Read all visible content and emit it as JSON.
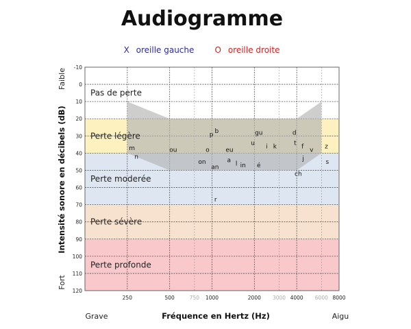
{
  "chart_data": {
    "type": "audiogram",
    "title": "Audiogramme",
    "legend": [
      {
        "symbol": "X",
        "label": "oreille gauche",
        "color": "#2a2aa8"
      },
      {
        "symbol": "O",
        "label": "oreille droite",
        "color": "#d42020"
      }
    ],
    "xlabel": "Fréquence en Hertz (Hz)",
    "x_left_label": "Grave",
    "x_right_label": "Aigu",
    "ylabel": "Intensité sonore en décibels (dB)",
    "y_top_label": "Faible",
    "y_bottom_label": "Fort",
    "x_scale": "log",
    "xlim": [
      125,
      8000
    ],
    "ylim": [
      -10,
      120
    ],
    "y_inverted": true,
    "x_ticks": [
      {
        "value": 250,
        "label": "250",
        "major": true
      },
      {
        "value": 500,
        "label": "500",
        "major": true
      },
      {
        "value": 750,
        "label": "750",
        "major": false
      },
      {
        "value": 1000,
        "label": "1000",
        "major": true
      },
      {
        "value": 2000,
        "label": "2000",
        "major": true
      },
      {
        "value": 3000,
        "label": "3000",
        "major": false
      },
      {
        "value": 4000,
        "label": "4000",
        "major": true
      },
      {
        "value": 6000,
        "label": "6000",
        "major": false
      },
      {
        "value": 8000,
        "label": "8000",
        "major": true
      }
    ],
    "y_ticks": [
      {
        "value": -10,
        "label": "-10"
      },
      {
        "value": 0,
        "label": "0"
      },
      {
        "value": 10,
        "label": "10"
      },
      {
        "value": 20,
        "label": "20"
      },
      {
        "value": 30,
        "label": "30"
      },
      {
        "value": 40,
        "label": "40"
      },
      {
        "value": 50,
        "label": "50"
      },
      {
        "value": 60,
        "label": "60"
      },
      {
        "value": 70,
        "label": "70"
      },
      {
        "value": 80,
        "label": "80"
      },
      {
        "value": 90,
        "label": "90"
      },
      {
        "value": 100,
        "label": "100"
      },
      {
        "value": 110,
        "label": "110"
      },
      {
        "value": 120,
        "label": "120"
      }
    ],
    "bands": [
      {
        "label": "Pas de perte",
        "from": -10,
        "to": 20,
        "color": "#ffffff"
      },
      {
        "label": "Perte légère",
        "from": 20,
        "to": 40,
        "color": "#fdf1bf"
      },
      {
        "label": "Perte moderée",
        "from": 40,
        "to": 70,
        "color": "#dde6f1"
      },
      {
        "label": "Perte sévère",
        "from": 70,
        "to": 90,
        "color": "#f7e2d0"
      },
      {
        "label": "Perte profonde",
        "from": 90,
        "to": 120,
        "color": "#f8c8cb"
      }
    ],
    "speech_banana": {
      "color": "#b3b3b3",
      "opacity": 0.65,
      "polygon": [
        [
          250,
          10
        ],
        [
          500,
          20
        ],
        [
          4000,
          20
        ],
        [
          6000,
          10
        ],
        [
          6000,
          40
        ],
        [
          4000,
          50
        ],
        [
          500,
          50
        ],
        [
          250,
          40
        ]
      ]
    },
    "phonemes": [
      {
        "label": "m",
        "x": 270,
        "y": 37
      },
      {
        "label": "n",
        "x": 290,
        "y": 42
      },
      {
        "label": "ou",
        "x": 530,
        "y": 38
      },
      {
        "label": "o",
        "x": 930,
        "y": 38
      },
      {
        "label": "on",
        "x": 850,
        "y": 45
      },
      {
        "label": "an",
        "x": 1050,
        "y": 48
      },
      {
        "label": "p",
        "x": 990,
        "y": 29
      },
      {
        "label": "b",
        "x": 1080,
        "y": 27
      },
      {
        "label": "eu",
        "x": 1330,
        "y": 38
      },
      {
        "label": "a",
        "x": 1320,
        "y": 44
      },
      {
        "label": "l",
        "x": 1490,
        "y": 46
      },
      {
        "label": "in",
        "x": 1660,
        "y": 47
      },
      {
        "label": "r",
        "x": 1060,
        "y": 67
      },
      {
        "label": "gu",
        "x": 2150,
        "y": 28
      },
      {
        "label": "u",
        "x": 1950,
        "y": 34
      },
      {
        "label": "i",
        "x": 2450,
        "y": 36
      },
      {
        "label": "k",
        "x": 2800,
        "y": 36
      },
      {
        "label": "é",
        "x": 2150,
        "y": 47
      },
      {
        "label": "d",
        "x": 3850,
        "y": 28
      },
      {
        "label": "t",
        "x": 3900,
        "y": 34
      },
      {
        "label": "f",
        "x": 4400,
        "y": 36
      },
      {
        "label": "v",
        "x": 5100,
        "y": 38
      },
      {
        "label": "j",
        "x": 4450,
        "y": 43
      },
      {
        "label": "ch",
        "x": 4100,
        "y": 52
      },
      {
        "label": "z",
        "x": 6500,
        "y": 36
      },
      {
        "label": "s",
        "x": 6600,
        "y": 45
      }
    ]
  }
}
